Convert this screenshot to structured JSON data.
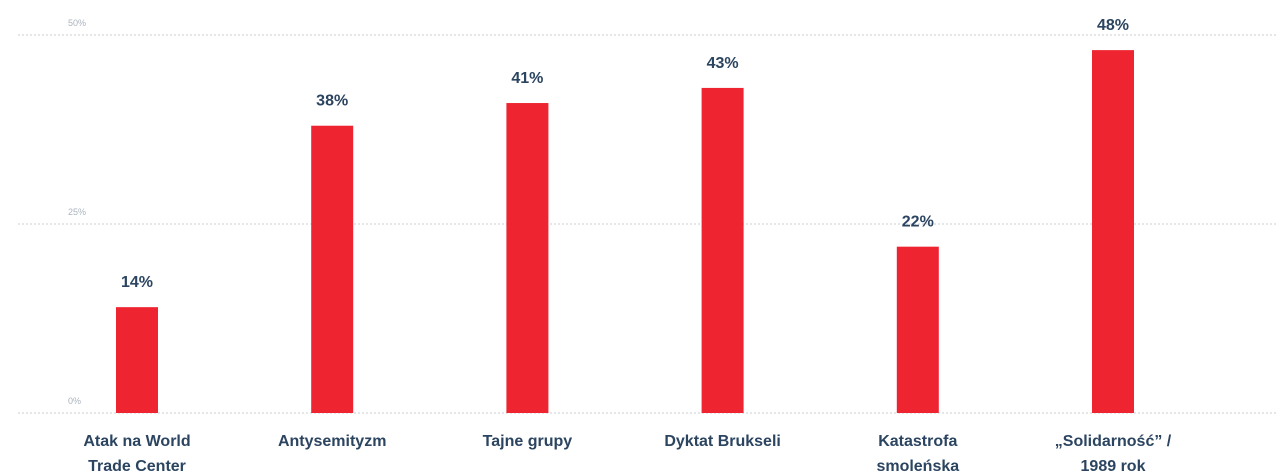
{
  "chart_data": {
    "type": "bar",
    "categories": [
      [
        "Atak na World",
        "Trade Center"
      ],
      [
        "Antysemityzm"
      ],
      [
        "Tajne grupy"
      ],
      [
        "Dyktat Brukseli"
      ],
      [
        "Katastrofa",
        "smoleńska"
      ],
      [
        "„Solidarność” /",
        "1989 rok"
      ]
    ],
    "values": [
      14,
      38,
      41,
      43,
      22,
      48
    ],
    "value_labels": [
      "14%",
      "38%",
      "41%",
      "43%",
      "22%",
      "48%"
    ],
    "yticks": [
      0,
      25,
      50
    ],
    "ytick_labels": [
      "0%",
      "25%",
      "50%"
    ],
    "ylim": [
      0,
      50
    ],
    "grid": true,
    "bar_color": "#ee2431",
    "label_color": "#2b4460",
    "title": "",
    "xlabel": "",
    "ylabel": ""
  }
}
